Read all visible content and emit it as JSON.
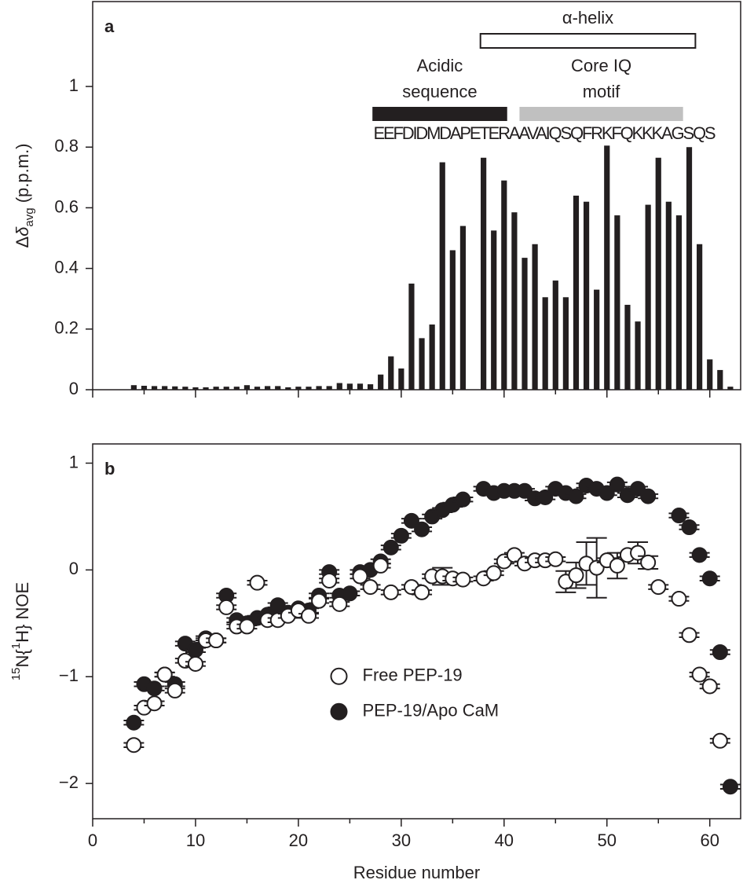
{
  "chart_data": [
    {
      "type": "bar",
      "panel_label": "a",
      "ylabel": [
        {
          "text": "Δ"
        },
        {
          "text": "δ",
          "italic": true
        },
        {
          "text": "avg",
          "sub": true
        },
        {
          "text": " (p.p.m.)"
        }
      ],
      "x": [
        4,
        5,
        6,
        7,
        8,
        9,
        10,
        11,
        12,
        13,
        14,
        15,
        16,
        17,
        18,
        19,
        20,
        21,
        22,
        23,
        24,
        25,
        26,
        27,
        28,
        29,
        30,
        31,
        32,
        33,
        34,
        35,
        36,
        37,
        38,
        39,
        40,
        41,
        42,
        43,
        44,
        45,
        46,
        47,
        48,
        49,
        50,
        51,
        52,
        53,
        54,
        55,
        56,
        57,
        58,
        59,
        60,
        61,
        62
      ],
      "values": [
        0.015,
        0.013,
        0.012,
        0.012,
        0.011,
        0.01,
        0.008,
        0.008,
        0.01,
        0.01,
        0.01,
        0.015,
        0.01,
        0.012,
        0.012,
        0.008,
        0.01,
        0.01,
        0.012,
        0.012,
        0.022,
        0.02,
        0.02,
        0.018,
        0.05,
        0.11,
        0.07,
        0.35,
        0.17,
        0.215,
        0.75,
        0.46,
        0.54,
        null,
        0.765,
        0.525,
        0.69,
        0.585,
        0.435,
        0.48,
        0.305,
        0.36,
        0.305,
        0.64,
        0.62,
        0.33,
        0.805,
        0.575,
        0.28,
        0.225,
        0.61,
        0.765,
        0.62,
        0.575,
        0.8,
        0.48,
        0.1,
        0.065,
        0.01
      ],
      "color": "#231f20",
      "xlim": [
        0,
        63
      ],
      "xticks": [
        0,
        10,
        20,
        30,
        40,
        50,
        60
      ],
      "xminor": [
        5,
        15,
        25,
        35,
        45,
        55
      ],
      "ylim": [
        0,
        1.28
      ],
      "yticks": [
        0,
        0.2,
        0.4,
        0.6,
        0.8,
        1
      ],
      "annotations": [
        {
          "lines": [
            "α-helix"
          ],
          "range": [
            37.7,
            58.6
          ],
          "style": "box"
        },
        {
          "lines": [
            "Acidic",
            "sequence"
          ],
          "range": [
            27.2,
            40.3
          ],
          "color": "#231f20"
        },
        {
          "lines": [
            "Core IQ",
            "motif"
          ],
          "range": [
            41.5,
            57.4
          ],
          "color": "#c0c0c0"
        }
      ],
      "sequence": {
        "text": "EEFDIDMDAPETERAAVAIQSQFRKFQKKKAGSQS",
        "range": [
          27.3,
          60.6
        ]
      }
    },
    {
      "type": "scatter",
      "panel_label": "b",
      "xlabel": "Residue number",
      "ylabel": [
        {
          "text": "15",
          "sup": true
        },
        {
          "text": "N{"
        },
        {
          "text": "1",
          "sup": true
        },
        {
          "text": "H} NOE"
        }
      ],
      "x": [
        4,
        5,
        6,
        7,
        8,
        9,
        10,
        11,
        12,
        13,
        14,
        15,
        16,
        17,
        18,
        19,
        20,
        21,
        22,
        23,
        24,
        25,
        26,
        27,
        28,
        29,
        30,
        31,
        32,
        33,
        34,
        35,
        36,
        37,
        38,
        39,
        40,
        41,
        42,
        43,
        44,
        45,
        46,
        47,
        48,
        49,
        50,
        51,
        52,
        53,
        54,
        55,
        56,
        57,
        58,
        59,
        60,
        61,
        62
      ],
      "xlim": [
        0,
        63
      ],
      "xticks": [
        0,
        10,
        20,
        30,
        40,
        50,
        60
      ],
      "xminor": [
        5,
        15,
        25,
        35,
        45,
        55
      ],
      "ylim": [
        -2.33,
        1.18
      ],
      "yticks": [
        1,
        0,
        {
          "value": -1,
          "label": "−1"
        },
        {
          "value": -2,
          "label": "−2"
        }
      ],
      "legend": "lower center",
      "series": [
        {
          "name": "Free PEP-19",
          "color": "#231f20",
          "filled": false,
          "values": [
            -1.64,
            -1.29,
            -1.25,
            -0.98,
            -1.13,
            -0.85,
            -0.88,
            -0.66,
            -0.66,
            -0.35,
            -0.53,
            -0.53,
            -0.12,
            -0.47,
            -0.47,
            -0.43,
            -0.38,
            -0.43,
            -0.29,
            -0.1,
            -0.32,
            null,
            -0.06,
            -0.16,
            0.04,
            -0.21,
            null,
            -0.16,
            -0.21,
            -0.06,
            -0.06,
            -0.08,
            -0.09,
            null,
            -0.08,
            -0.03,
            0.08,
            0.14,
            0.06,
            0.09,
            0.09,
            0.1,
            -0.11,
            -0.05,
            0.06,
            0.02,
            0.09,
            0.04,
            0.14,
            0.16,
            0.07,
            -0.16,
            null,
            -0.27,
            -0.61,
            -0.98,
            -1.09,
            -1.6,
            null
          ],
          "errors": [
            0.02,
            0.02,
            0.02,
            0.02,
            0.02,
            0.02,
            0.02,
            0.02,
            0.02,
            0.02,
            0.02,
            0.02,
            0.02,
            0.02,
            0.02,
            0.02,
            0.02,
            0.02,
            0.02,
            0.02,
            0.02,
            null,
            0.02,
            0.02,
            0.02,
            0.02,
            null,
            0.02,
            0.02,
            0.02,
            0.08,
            0.02,
            0.02,
            null,
            0.02,
            0.02,
            0.02,
            0.02,
            0.02,
            0.02,
            0.02,
            0.02,
            0.1,
            0.12,
            0.2,
            0.28,
            0.02,
            0.12,
            0.02,
            0.1,
            0.06,
            0.02,
            null,
            0.02,
            0.02,
            0.02,
            0.02,
            0.02,
            null
          ]
        },
        {
          "name": "PEP-19/Apo CaM",
          "color": "#231f20",
          "filled": true,
          "values": [
            -1.43,
            -1.07,
            -1.11,
            -0.98,
            -1.07,
            -0.69,
            -0.75,
            -0.64,
            -0.66,
            -0.24,
            -0.47,
            -0.5,
            -0.45,
            -0.42,
            -0.33,
            -0.4,
            -0.36,
            -0.38,
            -0.24,
            -0.02,
            -0.24,
            -0.22,
            -0.02,
            0,
            0.08,
            0.21,
            0.32,
            0.46,
            0.38,
            0.5,
            0.56,
            0.61,
            0.66,
            null,
            0.76,
            0.72,
            0.74,
            0.74,
            0.74,
            0.67,
            0.68,
            0.76,
            0.72,
            0.69,
            0.79,
            0.76,
            0.72,
            0.8,
            0.7,
            0.76,
            0.69,
            null,
            null,
            0.51,
            0.4,
            0.14,
            -0.08,
            -0.77,
            -2.03
          ],
          "errors": [
            0.02,
            0.02,
            0.02,
            0.02,
            0.02,
            0.02,
            0.02,
            0.02,
            0.02,
            0.02,
            0.02,
            0.02,
            0.02,
            0.02,
            0.02,
            0.02,
            0.02,
            0.02,
            0.02,
            0.02,
            0.02,
            0.02,
            0.02,
            0.02,
            0.02,
            0.02,
            0.02,
            0.02,
            0.02,
            0.02,
            0.02,
            0.02,
            0.02,
            null,
            0.02,
            0.02,
            0.02,
            0.02,
            0.02,
            0.02,
            0.02,
            0.02,
            0.02,
            0.02,
            0.02,
            0.02,
            0.02,
            0.02,
            0.02,
            0.02,
            0.02,
            null,
            null,
            0.02,
            0.02,
            0.02,
            0.02,
            0.02,
            0.02
          ]
        }
      ]
    }
  ]
}
